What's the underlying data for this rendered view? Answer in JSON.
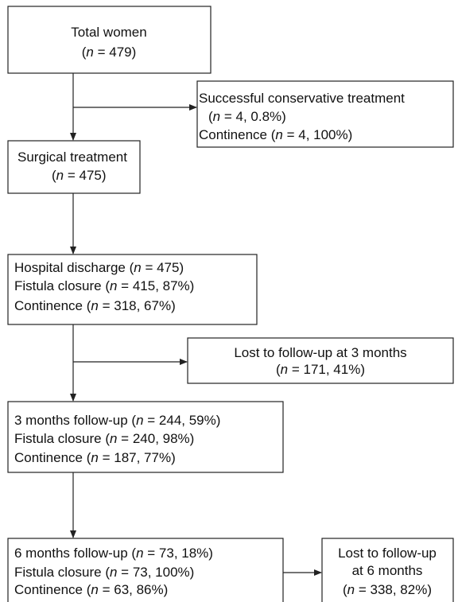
{
  "nodes": [
    {
      "lines": [
        [
          {
            "text": "Total women"
          }
        ],
        [
          {
            "text": "("
          },
          {
            "text": "n",
            "italic": true
          },
          {
            "text": " = 479)"
          }
        ]
      ]
    },
    {
      "lines": [
        [
          {
            "text": "Successful conservative treatment"
          }
        ],
        [
          {
            "text": "("
          },
          {
            "text": "n",
            "italic": true
          },
          {
            "text": " = 4, 0.8%)"
          }
        ],
        [
          {
            "text": "Continence ("
          },
          {
            "text": "n",
            "italic": true
          },
          {
            "text": " = 4, 100%)"
          }
        ]
      ]
    },
    {
      "lines": [
        [
          {
            "text": "Surgical treatment"
          }
        ],
        [
          {
            "text": "("
          },
          {
            "text": "n",
            "italic": true
          },
          {
            "text": " = 475)"
          }
        ]
      ]
    },
    {
      "lines": [
        [
          {
            "text": "Hospital discharge ("
          },
          {
            "text": "n",
            "italic": true
          },
          {
            "text": " = 475)"
          }
        ],
        [
          {
            "text": "Fistula closure ("
          },
          {
            "text": "n",
            "italic": true
          },
          {
            "text": " = 415, 87%)"
          }
        ],
        [
          {
            "text": "Continence ("
          },
          {
            "text": "n",
            "italic": true
          },
          {
            "text": " = 318, 67%)"
          }
        ]
      ]
    },
    {
      "lines": [
        [
          {
            "text": "Lost to follow-up at 3 months"
          }
        ],
        [
          {
            "text": "("
          },
          {
            "text": "n",
            "italic": true
          },
          {
            "text": " = 171, 41%)"
          }
        ]
      ]
    },
    {
      "lines": [
        [
          {
            "text": "3 months follow-up ("
          },
          {
            "text": "n",
            "italic": true
          },
          {
            "text": " = 244, 59%)"
          }
        ],
        [
          {
            "text": "Fistula closure ("
          },
          {
            "text": "n",
            "italic": true
          },
          {
            "text": " = 240, 98%)"
          }
        ],
        [
          {
            "text": "Continence ("
          },
          {
            "text": "n",
            "italic": true
          },
          {
            "text": " = 187, 77%)"
          }
        ]
      ]
    },
    {
      "lines": [
        [
          {
            "text": "6 months follow-up ("
          },
          {
            "text": "n",
            "italic": true
          },
          {
            "text": " = 73, 18%)"
          }
        ],
        [
          {
            "text": "Fistula closure ("
          },
          {
            "text": "n",
            "italic": true
          },
          {
            "text": " = 73, 100%)"
          }
        ],
        [
          {
            "text": "Continence ("
          },
          {
            "text": "n",
            "italic": true
          },
          {
            "text": " = 63, 86%)"
          }
        ]
      ]
    },
    {
      "lines": [
        [
          {
            "text": "Lost to follow-up"
          }
        ],
        [
          {
            "text": "at 6 months"
          }
        ],
        [
          {
            "text": "("
          },
          {
            "text": "n",
            "italic": true
          },
          {
            "text": " = 338, 82%)"
          }
        ]
      ]
    }
  ]
}
